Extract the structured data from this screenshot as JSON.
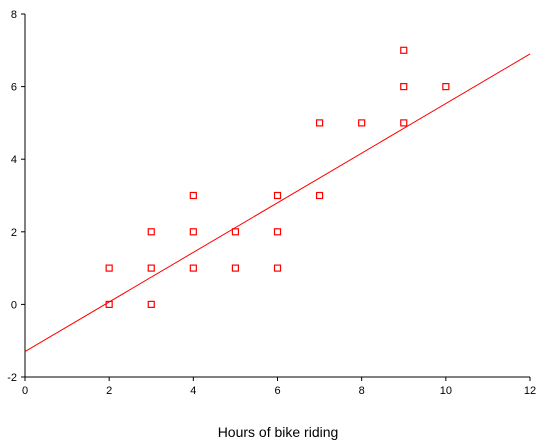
{
  "chart_data": {
    "type": "scatter",
    "title": "",
    "xlabel": "Hours of bike riding",
    "ylabel": "",
    "xlim": [
      0,
      12
    ],
    "ylim": [
      -2,
      8
    ],
    "xticks": [
      "0",
      "2",
      "4",
      "6",
      "8",
      "10",
      "12"
    ],
    "yticks": [
      "-2",
      "0",
      "2",
      "4",
      "6",
      "8"
    ],
    "grid": false,
    "legend": "none",
    "marker_color": "#ff0000",
    "line_color": "#ff0000",
    "series": [
      {
        "points": [
          [
            2,
            0
          ],
          [
            2,
            1
          ],
          [
            3,
            0
          ],
          [
            3,
            1
          ],
          [
            3,
            2
          ],
          [
            4,
            1
          ],
          [
            4,
            2
          ],
          [
            4,
            3
          ],
          [
            5,
            1
          ],
          [
            5,
            2
          ],
          [
            6,
            1
          ],
          [
            6,
            2
          ],
          [
            6,
            3
          ],
          [
            7,
            3
          ],
          [
            7,
            5
          ],
          [
            8,
            5
          ],
          [
            9,
            5
          ],
          [
            9,
            6
          ],
          [
            9,
            7
          ],
          [
            10,
            6
          ]
        ]
      }
    ],
    "fit_line": {
      "x": [
        0,
        12
      ],
      "y": [
        -1.3,
        6.9
      ]
    }
  }
}
